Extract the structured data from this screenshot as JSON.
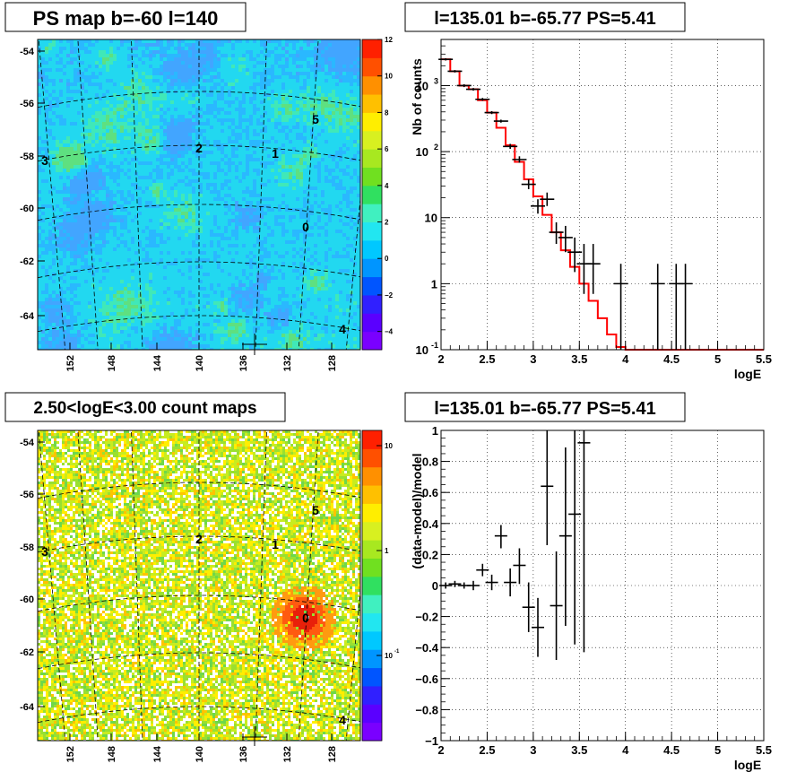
{
  "panels": {
    "top_left": {
      "title": "PS map b=-60 l=140",
      "y_ticks": [
        "-54",
        "-56",
        "-58",
        "-60",
        "-62",
        "-64"
      ],
      "x_ticks": [
        "152",
        "148",
        "144",
        "140",
        "136",
        "132",
        "128"
      ],
      "colorbar_ticks": [
        "12",
        "10",
        "8",
        "6",
        "4",
        "2",
        "0",
        "−2",
        "−4"
      ],
      "colorbar_range": [
        -5,
        12
      ],
      "source_labels": [
        "3",
        "2",
        "1",
        "5",
        "0",
        "4"
      ]
    },
    "bottom_left": {
      "title": "2.50<logE<3.00 count maps",
      "y_ticks": [
        "-54",
        "-56",
        "-58",
        "-60",
        "-62",
        "-64"
      ],
      "x_ticks": [
        "152",
        "148",
        "144",
        "140",
        "136",
        "132",
        "128"
      ],
      "colorbar_ticks": [
        "10",
        "1",
        "10",
        "-1"
      ],
      "source_labels": [
        "3",
        "2",
        "1",
        "5",
        "0",
        "4"
      ]
    }
  },
  "chart_data": [
    {
      "type": "line",
      "title": "l=135.01 b=-65.77 PS=5.41",
      "xlabel": "logE",
      "ylabel": "Nb of counts",
      "xlim": [
        2,
        5.5
      ],
      "ylim": [
        0.1,
        5000
      ],
      "yscale": "log",
      "grid": true,
      "x_ticks": [
        "2",
        "2.5",
        "3",
        "3.5",
        "4",
        "4.5",
        "5",
        "5.5"
      ],
      "y_ticks": [
        {
          "base": "10",
          "exp": "-1"
        },
        {
          "base": "1",
          "exp": ""
        },
        {
          "base": "10",
          "exp": ""
        },
        {
          "base": "10",
          "exp": "2"
        },
        {
          "base": "10",
          "exp": "3"
        }
      ],
      "series": [
        {
          "style": "points-with-errors",
          "color": "#000000",
          "points": [
            {
              "x": 2.05,
              "y": 2500,
              "lo": 2400,
              "hi": 2600
            },
            {
              "x": 2.15,
              "y": 1650,
              "lo": 1580,
              "hi": 1720
            },
            {
              "x": 2.25,
              "y": 1000,
              "lo": 950,
              "hi": 1050
            },
            {
              "x": 2.35,
              "y": 880,
              "lo": 840,
              "hi": 920
            },
            {
              "x": 2.45,
              "y": 620,
              "lo": 590,
              "hi": 650
            },
            {
              "x": 2.55,
              "y": 390,
              "lo": 370,
              "hi": 410
            },
            {
              "x": 2.65,
              "y": 290,
              "lo": 275,
              "hi": 305
            },
            {
              "x": 2.75,
              "y": 120,
              "lo": 110,
              "hi": 131
            },
            {
              "x": 2.85,
              "y": 76,
              "lo": 68,
              "hi": 85
            },
            {
              "x": 2.95,
              "y": 32,
              "lo": 27,
              "hi": 38
            },
            {
              "x": 3.05,
              "y": 15,
              "lo": 11.5,
              "hi": 19
            },
            {
              "x": 3.15,
              "y": 19,
              "lo": 15,
              "hi": 24
            },
            {
              "x": 3.25,
              "y": 6,
              "lo": 4,
              "hi": 8.5
            },
            {
              "x": 3.35,
              "y": 5,
              "lo": 3,
              "hi": 7.5
            },
            {
              "x": 3.45,
              "y": 3,
              "lo": 1.5,
              "hi": 5
            },
            {
              "x": 3.55,
              "y": 2,
              "lo": 0.7,
              "hi": 4
            },
            {
              "x": 3.65,
              "y": 2,
              "lo": 0.7,
              "hi": 4
            },
            {
              "x": 3.95,
              "y": 1,
              "lo": 0.1,
              "hi": 2
            },
            {
              "x": 4.35,
              "y": 1,
              "lo": 0.1,
              "hi": 2
            },
            {
              "x": 4.55,
              "y": 1,
              "lo": 0.1,
              "hi": 2
            },
            {
              "x": 4.65,
              "y": 1,
              "lo": 0.1,
              "hi": 2
            }
          ]
        },
        {
          "style": "step",
          "color": "#ff0000",
          "edges": [
            2.0,
            2.1,
            2.2,
            2.3,
            2.4,
            2.5,
            2.6,
            2.7,
            2.8,
            2.9,
            3.0,
            3.1,
            3.2,
            3.3,
            3.4,
            3.5,
            3.6,
            3.7,
            3.8,
            3.9,
            4.0,
            5.5
          ],
          "values": [
            2500,
            1650,
            1000,
            880,
            600,
            390,
            230,
            125,
            70,
            38,
            21,
            11,
            6,
            3.2,
            1.8,
            1.0,
            0.55,
            0.3,
            0.17,
            0.11,
            0.1
          ]
        }
      ]
    },
    {
      "type": "scatter",
      "title": "l=135.01 b=-65.77 PS=5.41",
      "xlabel": "logE",
      "ylabel": "(data-model)/model",
      "xlim": [
        2,
        5.5
      ],
      "ylim": [
        -1,
        1
      ],
      "grid": true,
      "x_ticks": [
        "2",
        "2.5",
        "3",
        "3.5",
        "4",
        "4.5",
        "5",
        "5.5"
      ],
      "y_ticks": [
        "−1",
        "−0.8",
        "−0.6",
        "−0.4",
        "−0.2",
        "0",
        "0.2",
        "0.4",
        "0.6",
        "0.8",
        "1"
      ],
      "series": [
        {
          "style": "points-with-errors",
          "color": "#000000",
          "points": [
            {
              "x": 2.05,
              "y": 0.0,
              "lo": -0.02,
              "hi": 0.02
            },
            {
              "x": 2.15,
              "y": 0.01,
              "lo": -0.01,
              "hi": 0.03
            },
            {
              "x": 2.25,
              "y": 0.0,
              "lo": -0.02,
              "hi": 0.02
            },
            {
              "x": 2.35,
              "y": 0.0,
              "lo": -0.03,
              "hi": 0.03
            },
            {
              "x": 2.45,
              "y": 0.1,
              "lo": 0.06,
              "hi": 0.14
            },
            {
              "x": 2.55,
              "y": 0.02,
              "lo": -0.03,
              "hi": 0.07
            },
            {
              "x": 2.65,
              "y": 0.32,
              "lo": 0.24,
              "hi": 0.39
            },
            {
              "x": 2.75,
              "y": 0.02,
              "lo": -0.07,
              "hi": 0.11
            },
            {
              "x": 2.85,
              "y": 0.13,
              "lo": 0.01,
              "hi": 0.24
            },
            {
              "x": 2.95,
              "y": -0.14,
              "lo": -0.3,
              "hi": 0.02
            },
            {
              "x": 3.05,
              "y": -0.27,
              "lo": -0.46,
              "hi": -0.08
            },
            {
              "x": 3.15,
              "y": 0.64,
              "lo": 0.26,
              "hi": 1.0
            },
            {
              "x": 3.25,
              "y": -0.13,
              "lo": -0.48,
              "hi": 0.22
            },
            {
              "x": 3.35,
              "y": 0.32,
              "lo": -0.26,
              "hi": 0.89
            },
            {
              "x": 3.45,
              "y": 0.46,
              "lo": -0.38,
              "hi": 1.0
            },
            {
              "x": 3.55,
              "y": 0.92,
              "lo": -0.43,
              "hi": 1.0
            }
          ]
        }
      ]
    }
  ]
}
